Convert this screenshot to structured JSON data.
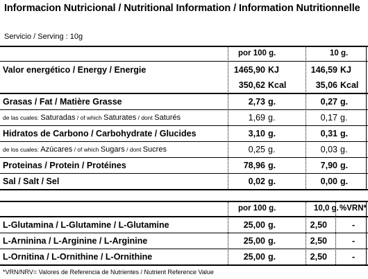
{
  "title": "Informacion Nutricional / Nutritional Information / Information Nutritionnelle",
  "serving": "Servicio / Serving : 10g",
  "table1": {
    "col1_header": "por 100 g.",
    "col2_header": "10 g.",
    "energy_label": "Valor energético / Energy / Energie",
    "energy_kj": {
      "v1": "1465,90",
      "v2": "146,59",
      "unit": "KJ"
    },
    "energy_kcal": {
      "v1": "350,62",
      "v2": "35,06",
      "unit": "Kcal"
    },
    "rows": [
      {
        "label": "Grasas / Fat / Matière Grasse",
        "v1": "2,73",
        "v2": "0,27",
        "unit": "g."
      },
      {
        "label_a": "de las cuales: ",
        "label_b": "Saturadas",
        "label_c": " / of which ",
        "label_d": "Saturates",
        "label_e": " / dont ",
        "label_f": "Saturés",
        "v1": "1,69",
        "v2": "0,17",
        "unit": "g."
      },
      {
        "label": "Hidratos de Carbono / Carbohydrate / Glucides",
        "v1": "3,10",
        "v2": "0,31",
        "unit": "g."
      },
      {
        "label_a": "de los cuales: ",
        "label_b": "Azúcares",
        "label_c": " / of which ",
        "label_d": "Sugars",
        "label_e": " / dont ",
        "label_f": "Sucres",
        "v1": "0,25",
        "v2": "0,03",
        "unit": "g."
      },
      {
        "label": "Proteinas / Protein / Protéines",
        "v1": "78,96",
        "v2": "7,90",
        "unit": "g."
      },
      {
        "label": "Sal / Salt / Sel",
        "v1": "0,02",
        "v2": "0,00",
        "unit": "g."
      }
    ]
  },
  "table2": {
    "col1_header": "por 100 g.",
    "col2_header": "10,0 g.",
    "col3_header": "%VRN*",
    "rows": [
      {
        "label": "L-Glutamina / L-Glutamine / L-Glutamine",
        "v1": "25,00",
        "unit": "g.",
        "v2": "2,50",
        "vrn": "-"
      },
      {
        "label": "L-Arninina / L-Arginine / L-Arginine",
        "v1": "25,00",
        "unit": "g.",
        "v2": "2,50",
        "vrn": "-"
      },
      {
        "label": "L-Ornitina / L-Ornithine / L-Ornithine",
        "v1": "25,00",
        "unit": "g.",
        "v2": "2,50",
        "vrn": "-"
      }
    ]
  },
  "footnote": "*VRN/NRV= Valores de Referencia de Nutrientes / Nutrient Reference Value"
}
